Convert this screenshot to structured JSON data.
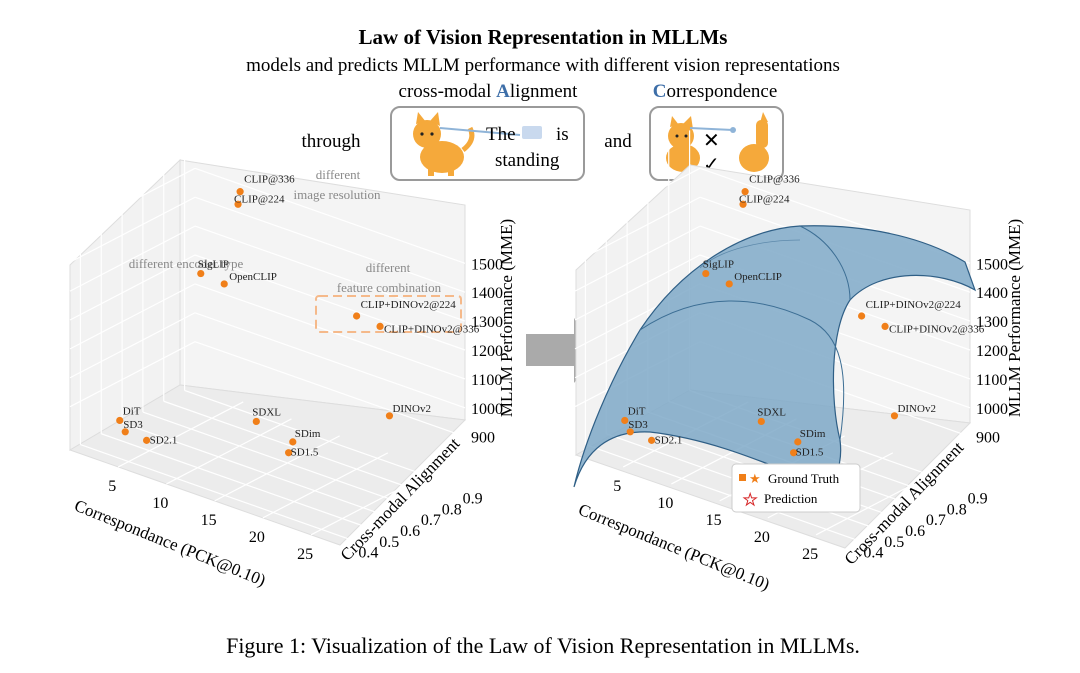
{
  "header": {
    "title": "Law of Vision Representation in MLLMs",
    "subtitle": "models and predicts MLLM performance with different vision representations",
    "alignment_label": {
      "letter": "A",
      "rest": "lignment",
      "prefix": "cross-modal "
    },
    "correspondence_label": {
      "letter": "C",
      "rest": "orrespondence"
    },
    "through": "through",
    "and": "and",
    "alignment_card": {
      "line1_pre": "The",
      "line1_post": "is",
      "line2": "standing"
    }
  },
  "caption": "Figure 1: Visualization of the Law of Vision Representation in MLLMs.",
  "colors": {
    "accent_blue": "#3d6ea8",
    "point_orange": "#f07f19",
    "surface": "#7fa9c8",
    "gray_arrow": "#aaaaaa",
    "annotation_gray": "#8a8a8a"
  },
  "chart_data": [
    {
      "type": "scatter",
      "title": "",
      "xlabel": "Correspondance (PCK@0.10)",
      "ylabel": "Cross-modal Alignment",
      "zlabel": "MLLM Performance (MME)",
      "x_ticks": [
        "5",
        "10",
        "15",
        "20",
        "25"
      ],
      "y_ticks": [
        "0.4",
        "0.5",
        "0.6",
        "0.7",
        "0.8",
        "0.9"
      ],
      "z_ticks": [
        "900",
        "1000",
        "1100",
        "1200",
        "1300",
        "1400",
        "1500"
      ],
      "annotations": [
        "different image resolution",
        "different encoder type",
        "different feature combination"
      ],
      "annotation_lines": {
        "resolution": [
          "different",
          "image resolution"
        ],
        "encoder": [
          "different encoder type"
        ],
        "combination": [
          "different",
          "feature combination"
        ]
      },
      "points": [
        {
          "label": "CLIP@336",
          "x": 9,
          "y": 0.75,
          "z": 1600
        },
        {
          "label": "CLIP@224",
          "x": 9,
          "y": 0.74,
          "z": 1560
        },
        {
          "label": "SigLIP",
          "x": 6,
          "y": 0.7,
          "z": 1300
        },
        {
          "label": "OpenCLIP",
          "x": 8,
          "y": 0.72,
          "z": 1280
        },
        {
          "label": "CLIP+DINOv2@224",
          "x": 20,
          "y": 0.8,
          "z": 1280
        },
        {
          "label": "CLIP+DINOv2@336",
          "x": 22,
          "y": 0.82,
          "z": 1260
        },
        {
          "label": "DINOv2",
          "x": 26,
          "y": 0.68,
          "z": 1050
        },
        {
          "label": "SDXL",
          "x": 15,
          "y": 0.55,
          "z": 950
        },
        {
          "label": "SDim",
          "x": 19,
          "y": 0.54,
          "z": 930
        },
        {
          "label": "SD1.5",
          "x": 19,
          "y": 0.52,
          "z": 900
        },
        {
          "label": "DiT",
          "x": 3,
          "y": 0.45,
          "z": 850
        },
        {
          "label": "SD3",
          "x": 4,
          "y": 0.43,
          "z": 830
        },
        {
          "label": "SD2.1",
          "x": 6,
          "y": 0.44,
          "z": 820
        }
      ]
    },
    {
      "type": "scatter",
      "title": "",
      "xlabel": "Correspondance (PCK@0.10)",
      "ylabel": "Cross-modal Alignment",
      "zlabel": "MLLM Performance (MME)",
      "x_ticks": [
        "5",
        "10",
        "15",
        "20",
        "25"
      ],
      "y_ticks": [
        "0.4",
        "0.5",
        "0.6",
        "0.7",
        "0.8",
        "0.9"
      ],
      "z_ticks": [
        "900",
        "1000",
        "1100",
        "1200",
        "1300",
        "1400",
        "1500"
      ],
      "legend": [
        "Ground Truth",
        "Prediction"
      ],
      "surface": "fitted prediction surface",
      "points": [
        {
          "label": "CLIP@336",
          "x": 9,
          "y": 0.75,
          "z": 1600
        },
        {
          "label": "CLIP@224",
          "x": 9,
          "y": 0.74,
          "z": 1560
        },
        {
          "label": "SigLIP",
          "x": 6,
          "y": 0.7,
          "z": 1300
        },
        {
          "label": "OpenCLIP",
          "x": 8,
          "y": 0.72,
          "z": 1280
        },
        {
          "label": "CLIP+DINOv2@224",
          "x": 20,
          "y": 0.8,
          "z": 1280
        },
        {
          "label": "CLIP+DINOv2@336",
          "x": 22,
          "y": 0.82,
          "z": 1260
        },
        {
          "label": "DINOv2",
          "x": 26,
          "y": 0.68,
          "z": 1050
        },
        {
          "label": "SDXL",
          "x": 15,
          "y": 0.55,
          "z": 950
        },
        {
          "label": "SDim",
          "x": 19,
          "y": 0.54,
          "z": 930
        },
        {
          "label": "SD1.5",
          "x": 19,
          "y": 0.52,
          "z": 900
        },
        {
          "label": "DiT",
          "x": 3,
          "y": 0.45,
          "z": 850
        },
        {
          "label": "SD3",
          "x": 4,
          "y": 0.43,
          "z": 830
        },
        {
          "label": "SD2.1",
          "x": 6,
          "y": 0.44,
          "z": 820
        }
      ]
    }
  ]
}
